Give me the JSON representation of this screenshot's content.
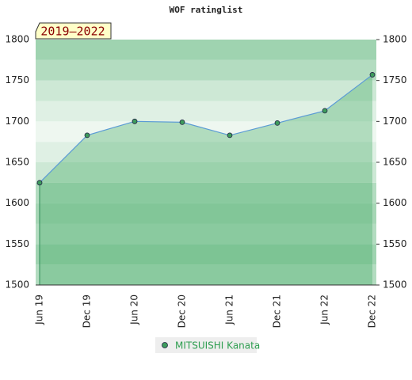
{
  "chart_data": {
    "type": "line",
    "title": "WOF ratinglist",
    "annotation": "2019–2022",
    "categories": [
      "Jun 19",
      "Dec 19",
      "Jun 20",
      "Dec 20",
      "Jun 21",
      "Dec 21",
      "Jun 22",
      "Dec 22"
    ],
    "series": [
      {
        "name": "MITSUISHI Kanata",
        "color": "#5b9bd5",
        "values": [
          1625,
          1683,
          1700,
          1699,
          1683,
          1698,
          1713,
          1757
        ]
      }
    ],
    "ylim": [
      1500,
      1800
    ],
    "yticks": [
      1500,
      1550,
      1600,
      1650,
      1700,
      1750,
      1800
    ]
  }
}
